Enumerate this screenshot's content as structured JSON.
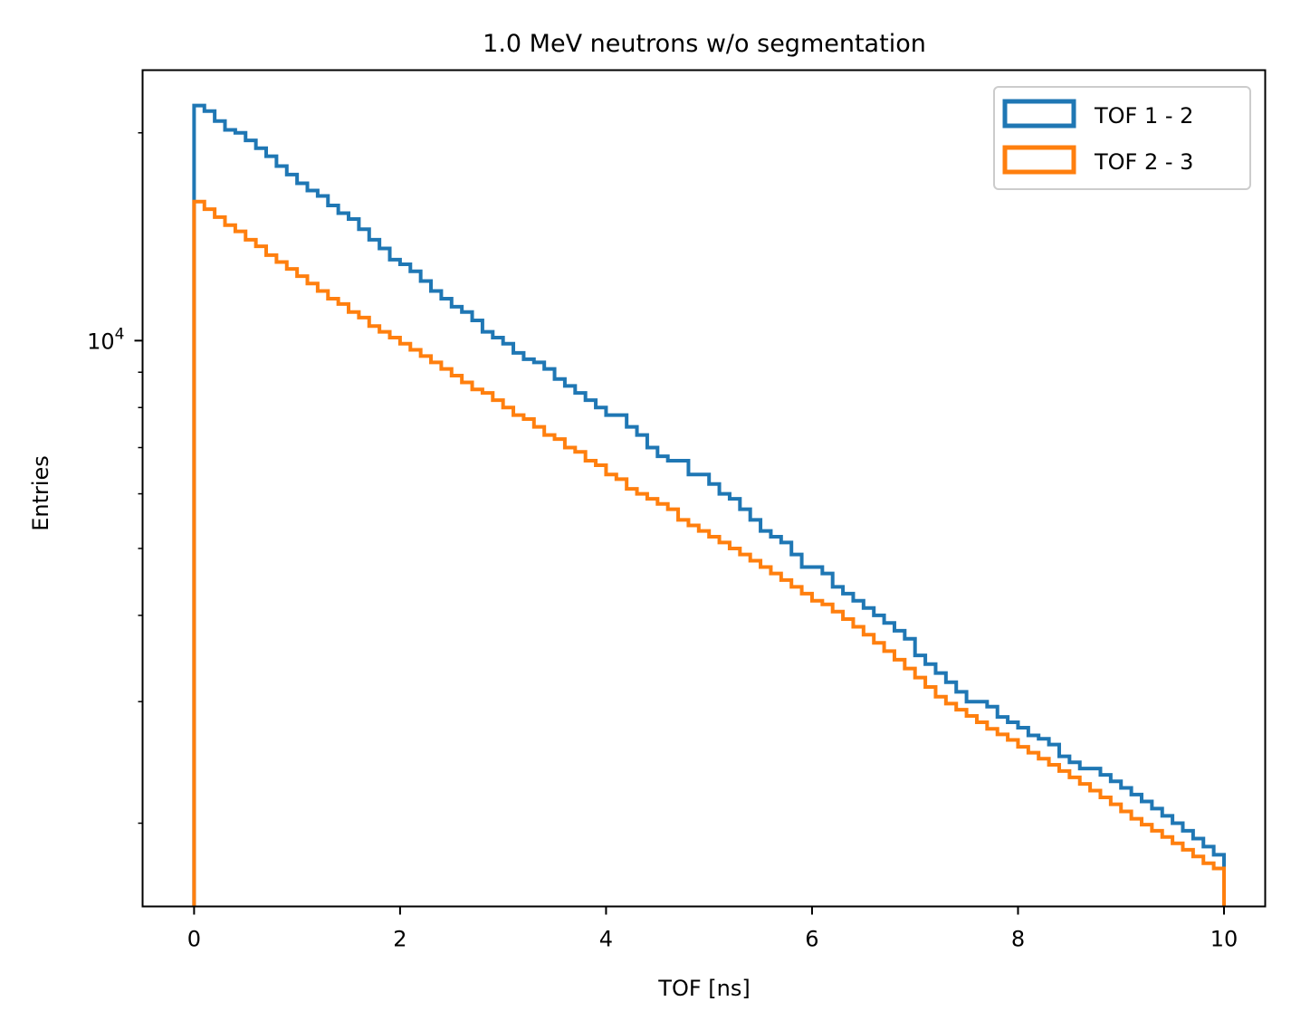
{
  "chart_data": {
    "type": "line",
    "title": "1.0 MeV neutrons w/o segmentation",
    "xlabel": "TOF [ns]",
    "ylabel": "Entries",
    "xlim": [
      -0.5,
      10.4
    ],
    "ylim": [
      1515,
      24650
    ],
    "yscale": "log",
    "xticks": [
      0,
      2,
      4,
      6,
      8,
      10
    ],
    "xtick_labels": [
      "0",
      "2",
      "4",
      "6",
      "8",
      "10"
    ],
    "yticks_major": [
      10000
    ],
    "ytick_major_labels": [
      {
        "base": "10",
        "exp": "4"
      }
    ],
    "yticks_minor": [
      2000,
      3000,
      4000,
      5000,
      6000,
      7000,
      8000,
      9000,
      20000
    ],
    "legend_position": "top-right",
    "grid": false,
    "bin_edges_start": 0.0,
    "bin_width": 0.1,
    "series": [
      {
        "name": "TOF 1 - 2",
        "color": "#1f77b4",
        "values": [
          21900,
          21500,
          20800,
          20200,
          20000,
          19500,
          19000,
          18500,
          17900,
          17400,
          16900,
          16500,
          16200,
          15700,
          15300,
          15000,
          14500,
          14000,
          13600,
          13100,
          12900,
          12600,
          12200,
          11800,
          11500,
          11200,
          11000,
          10700,
          10300,
          10100,
          9900,
          9600,
          9400,
          9300,
          9100,
          8800,
          8600,
          8400,
          8200,
          8000,
          7800,
          7800,
          7500,
          7300,
          7000,
          6800,
          6700,
          6700,
          6400,
          6400,
          6200,
          6000,
          5900,
          5700,
          5500,
          5300,
          5200,
          5100,
          4900,
          4700,
          4700,
          4600,
          4400,
          4300,
          4200,
          4100,
          4000,
          3900,
          3800,
          3700,
          3500,
          3400,
          3300,
          3200,
          3100,
          3000,
          3000,
          2950,
          2850,
          2800,
          2750,
          2680,
          2650,
          2600,
          2500,
          2450,
          2400,
          2400,
          2350,
          2300,
          2250,
          2200,
          2150,
          2100,
          2050,
          2000,
          1950,
          1900,
          1850,
          1800
        ]
      },
      {
        "name": "TOF 2 - 3",
        "color": "#ff7f0e",
        "values": [
          15900,
          15500,
          15100,
          14700,
          14400,
          14000,
          13700,
          13300,
          13000,
          12700,
          12400,
          12100,
          11800,
          11500,
          11300,
          11000,
          10800,
          10500,
          10300,
          10100,
          9900,
          9700,
          9500,
          9300,
          9100,
          8900,
          8700,
          8500,
          8400,
          8200,
          8000,
          7800,
          7700,
          7500,
          7300,
          7200,
          7000,
          6900,
          6700,
          6600,
          6400,
          6300,
          6100,
          6000,
          5900,
          5800,
          5700,
          5500,
          5400,
          5300,
          5200,
          5100,
          5000,
          4900,
          4800,
          4700,
          4600,
          4500,
          4400,
          4300,
          4200,
          4150,
          4050,
          3950,
          3850,
          3750,
          3650,
          3550,
          3450,
          3350,
          3250,
          3150,
          3050,
          2980,
          2920,
          2860,
          2800,
          2740,
          2690,
          2640,
          2580,
          2530,
          2480,
          2430,
          2380,
          2330,
          2280,
          2230,
          2180,
          2130,
          2080,
          2030,
          1990,
          1950,
          1910,
          1870,
          1830,
          1790,
          1750,
          1720
        ]
      }
    ]
  }
}
